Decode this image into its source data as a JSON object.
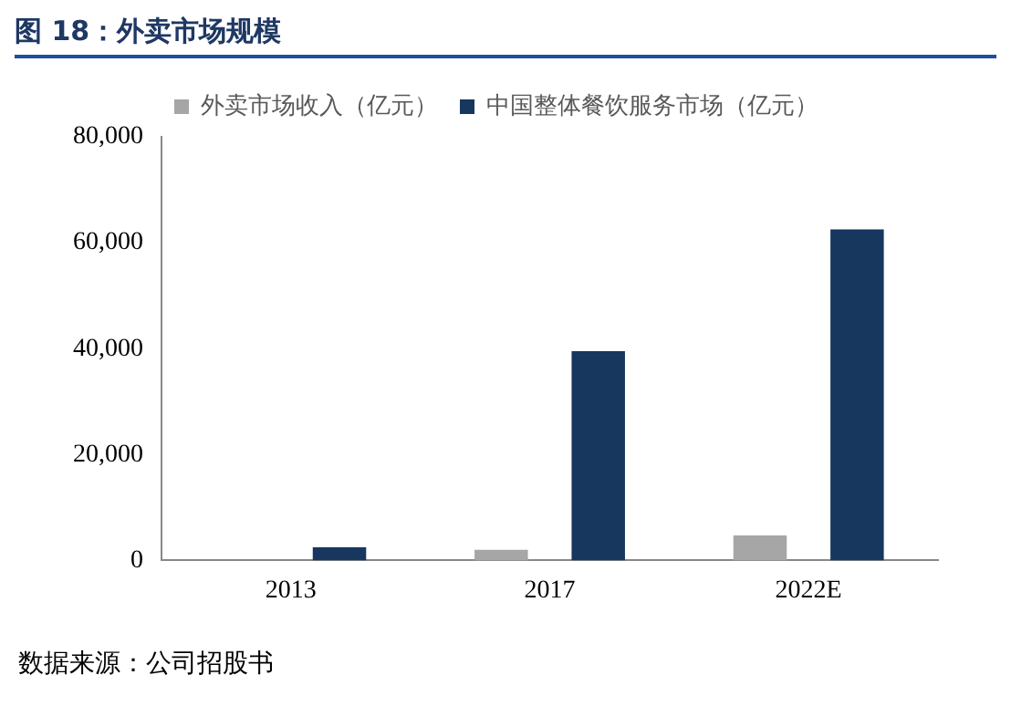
{
  "chart_data": {
    "type": "bar",
    "title": "图 18：外卖市场规模",
    "categories": [
      "2013",
      "2017",
      "2022E"
    ],
    "series": [
      {
        "name": "外卖市场收入（亿元）",
        "color": "#a6a6a6",
        "values": [
          null,
          2000,
          4700
        ]
      },
      {
        "name": "中国整体餐饮服务市场（亿元）",
        "color": "#17375e",
        "values": [
          2500,
          39500,
          62500
        ]
      }
    ],
    "ylim": [
      0,
      80000
    ],
    "yticks": [
      0,
      {
        "value": 20000,
        "label": "20,000"
      },
      {
        "value": 40000,
        "label": "40,000"
      },
      {
        "value": 60000,
        "label": "60,000"
      },
      {
        "value": 80000,
        "label": "80,000"
      }
    ],
    "grid": false,
    "legend": "top",
    "annotations": [
      "数据来源：公司招股书"
    ]
  }
}
